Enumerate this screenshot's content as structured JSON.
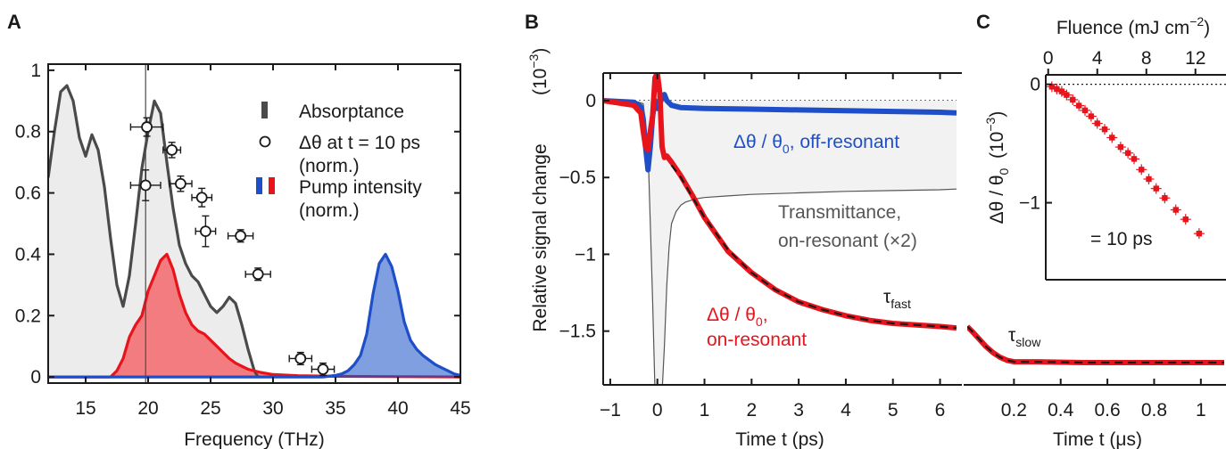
{
  "chart_data": [
    {
      "panel": "A",
      "type": "area",
      "xlabel": "Frequency (THz)",
      "ylabel": "",
      "xlim": [
        12,
        45
      ],
      "ylim": [
        -0.02,
        1.02
      ],
      "xticks": [
        15,
        20,
        25,
        30,
        35,
        40,
        45
      ],
      "yticks": [
        0,
        0.2,
        0.4,
        0.6,
        0.8,
        1
      ],
      "legend_position": "top-right",
      "legend": [
        {
          "label": "Absorptance",
          "label2": "",
          "marker": "bar",
          "color": "#4a4a4a"
        },
        {
          "label": "Δθ at t = 10 ps",
          "label2": "(norm.)",
          "marker": "circle",
          "color": "#1a1a1a"
        },
        {
          "label": "Pump intensity",
          "label2": "(norm.)",
          "marker": "bar-pair",
          "color": "#e8141c",
          "color2": "#1f4fc8"
        }
      ],
      "series": [
        {
          "key": "absorptance",
          "color": "#4a4a4a",
          "fill": "#ececec",
          "x": [
            12,
            12.5,
            13,
            13.5,
            14,
            14.5,
            15,
            15.5,
            16,
            16.5,
            17,
            17.5,
            18,
            18.5,
            19,
            19.5,
            20,
            20.5,
            21,
            21.5,
            22,
            22.5,
            23,
            23.5,
            24,
            24.5,
            25,
            25.5,
            26,
            26.5,
            27,
            27.5,
            28,
            28.5,
            28.8
          ],
          "y": [
            0.65,
            0.8,
            0.93,
            0.95,
            0.9,
            0.78,
            0.72,
            0.79,
            0.74,
            0.62,
            0.45,
            0.3,
            0.23,
            0.33,
            0.5,
            0.68,
            0.8,
            0.9,
            0.86,
            0.7,
            0.55,
            0.43,
            0.37,
            0.33,
            0.31,
            0.27,
            0.23,
            0.21,
            0.23,
            0.26,
            0.24,
            0.17,
            0.09,
            0.02,
            0.0
          ]
        },
        {
          "key": "pump_red",
          "color": "#e8141c",
          "fill": "#f37c80",
          "x": [
            12,
            17,
            17.5,
            18,
            18.5,
            19,
            19.5,
            20,
            20.5,
            21,
            21.5,
            22,
            22.5,
            23,
            23.5,
            24,
            24.5,
            25,
            25.5,
            26,
            26.5,
            27,
            27.5,
            28,
            29,
            30,
            32,
            35,
            45
          ],
          "y": [
            0,
            0,
            0.02,
            0.06,
            0.13,
            0.17,
            0.2,
            0.28,
            0.33,
            0.38,
            0.4,
            0.35,
            0.27,
            0.21,
            0.17,
            0.15,
            0.14,
            0.12,
            0.1,
            0.08,
            0.06,
            0.045,
            0.035,
            0.025,
            0.015,
            0.008,
            0.004,
            0.002,
            0
          ]
        },
        {
          "key": "pump_blue",
          "color": "#1f4fc8",
          "fill": "#7f9fe0",
          "x": [
            12,
            34,
            35,
            35.5,
            36,
            36.5,
            37,
            37.5,
            38,
            38.5,
            39,
            39.5,
            40,
            40.5,
            41,
            41.5,
            42,
            42.5,
            43,
            43.5,
            44,
            44.5,
            45
          ],
          "y": [
            0,
            0,
            0.005,
            0.01,
            0.02,
            0.04,
            0.07,
            0.14,
            0.27,
            0.37,
            0.4,
            0.36,
            0.28,
            0.18,
            0.12,
            0.09,
            0.07,
            0.055,
            0.04,
            0.03,
            0.02,
            0.01,
            0.005
          ]
        }
      ],
      "scatter": {
        "key": "delta_theta",
        "marker": "circle",
        "color": "#1a1a1a",
        "points": [
          {
            "x": 19.9,
            "y": 0.815,
            "xerr": 1.3,
            "yerr": 0.03
          },
          {
            "x": 21.9,
            "y": 0.74,
            "xerr": 0.7,
            "yerr": 0.025
          },
          {
            "x": 19.8,
            "y": 0.625,
            "xerr": 1.2,
            "yerr": 0.05
          },
          {
            "x": 22.6,
            "y": 0.63,
            "xerr": 0.9,
            "yerr": 0.025
          },
          {
            "x": 24.3,
            "y": 0.585,
            "xerr": 0.8,
            "yerr": 0.03
          },
          {
            "x": 24.6,
            "y": 0.475,
            "xerr": 0.8,
            "yerr": 0.05
          },
          {
            "x": 27.4,
            "y": 0.46,
            "xerr": 1.0,
            "yerr": 0.02
          },
          {
            "x": 28.8,
            "y": 0.335,
            "xerr": 1.0,
            "yerr": 0.02
          },
          {
            "x": 32.2,
            "y": 0.06,
            "xerr": 0.9,
            "yerr": 0.02
          },
          {
            "x": 34.0,
            "y": 0.025,
            "xerr": 0.9,
            "yerr": 0.02
          }
        ]
      },
      "vline_x": 19.8
    },
    {
      "panel": "B",
      "type": "line",
      "xlabel": "Time t (ps)",
      "ylabel": "Relative signal change",
      "ylabel_unit": "(10",
      "ylabel_unit_exp": "−3",
      "ylabel_unit_close": ")",
      "xlim": [
        -1.15,
        6.35
      ],
      "ylim": [
        -1.85,
        0.18
      ],
      "xticks": [
        -1,
        0,
        1,
        2,
        3,
        4,
        5,
        6
      ],
      "yticks": [
        0,
        -0.5,
        -1,
        -1.5
      ],
      "annotations": {
        "off_resonant": {
          "main": "Δθ / θ",
          "sub": "0",
          "rest": ", off-resonant",
          "color": "#1f4fc8"
        },
        "transmittance_1": {
          "text": "Transmittance,",
          "color": "#555555"
        },
        "transmittance_2": {
          "text": "on-resonant (×2)",
          "color": "#555555"
        },
        "tau_fast": {
          "main": "τ",
          "sub": "fast",
          "color": "#1a1a1a"
        },
        "on_resonant_1": {
          "main": "Δθ / θ",
          "sub": "0",
          "rest": ",",
          "color": "#e8141c"
        },
        "on_resonant_2": {
          "text": "on-resonant",
          "color": "#e8141c"
        }
      },
      "series": [
        {
          "key": "transmittance",
          "color": "#555555",
          "fill": "#f2f2f2",
          "x": [
            -1.15,
            -0.5,
            -0.3,
            -0.2,
            -0.1,
            -0.05,
            0.0,
            0.05,
            0.1,
            0.15,
            0.2,
            0.25,
            0.3,
            0.4,
            0.5,
            0.6,
            0.8,
            1.0,
            1.5,
            2,
            3,
            4,
            5,
            6,
            6.35
          ],
          "y": [
            0,
            0,
            -0.02,
            -0.3,
            -1.3,
            -1.9,
            -1.9,
            -1.9,
            -1.9,
            -1.6,
            -1.2,
            -0.95,
            -0.8,
            -0.72,
            -0.68,
            -0.66,
            -0.64,
            -0.63,
            -0.62,
            -0.61,
            -0.6,
            -0.59,
            -0.585,
            -0.58,
            -0.575
          ]
        },
        {
          "key": "off_resonant",
          "color": "#1f4fc8",
          "x": [
            -1.15,
            -0.5,
            -0.35,
            -0.3,
            -0.25,
            -0.2,
            -0.15,
            -0.1,
            -0.05,
            0.0,
            0.05,
            0.1,
            0.15,
            0.2,
            0.3,
            0.5,
            1,
            2,
            3,
            4,
            5,
            6,
            6.35
          ],
          "y": [
            0,
            -0.01,
            -0.04,
            -0.12,
            -0.3,
            -0.45,
            -0.3,
            -0.1,
            0.0,
            -0.05,
            -0.02,
            0.02,
            0.04,
            0.0,
            -0.03,
            -0.045,
            -0.05,
            -0.055,
            -0.06,
            -0.065,
            -0.07,
            -0.075,
            -0.08
          ]
        },
        {
          "key": "on_resonant",
          "color": "#e8141c",
          "x": [
            -1.15,
            -0.5,
            -0.35,
            -0.3,
            -0.25,
            -0.2,
            -0.15,
            -0.1,
            -0.05,
            0.0,
            0.05,
            0.1,
            0.15,
            0.2,
            0.3,
            0.5,
            0.75,
            1.0,
            1.5,
            2,
            2.5,
            3,
            3.5,
            4,
            4.5,
            5,
            5.5,
            6,
            6.35
          ],
          "y": [
            0,
            -0.03,
            -0.08,
            -0.2,
            -0.3,
            -0.32,
            -0.2,
            -0.1,
            0.15,
            0.18,
            0.05,
            -0.3,
            -0.37,
            -0.36,
            -0.4,
            -0.49,
            -0.62,
            -0.76,
            -0.98,
            -1.12,
            -1.23,
            -1.31,
            -1.36,
            -1.4,
            -1.43,
            -1.45,
            -1.46,
            -1.47,
            -1.48
          ]
        },
        {
          "key": "fit",
          "color": "#1a1a1a",
          "dash": true,
          "x": [
            0.3,
            0.5,
            0.75,
            1.0,
            1.5,
            2,
            2.5,
            3,
            3.5,
            4,
            4.5,
            5,
            5.5,
            6,
            6.35
          ],
          "y": [
            -0.42,
            -0.5,
            -0.63,
            -0.76,
            -0.97,
            -1.12,
            -1.23,
            -1.31,
            -1.36,
            -1.4,
            -1.43,
            -1.45,
            -1.46,
            -1.47,
            -1.48
          ]
        }
      ]
    },
    {
      "panel": "B-long",
      "type": "line",
      "xlabel": "Time t (μs)",
      "xlim": [
        0,
        1.1
      ],
      "ylim": [
        -1.85,
        0.18
      ],
      "xticks": [
        0.2,
        0.4,
        0.6,
        0.8,
        1
      ],
      "annotations": {
        "tau_slow": {
          "main": "τ",
          "sub": "slow",
          "color": "#1a1a1a"
        }
      },
      "series": [
        {
          "key": "on_resonant_long",
          "color": "#e8141c",
          "x": [
            0,
            0.02,
            0.05,
            0.08,
            0.11,
            0.14,
            0.17,
            0.2,
            0.3,
            0.5,
            0.7,
            0.9,
            1.1
          ],
          "y": [
            -1.47,
            -1.5,
            -1.55,
            -1.6,
            -1.64,
            -1.67,
            -1.69,
            -1.7,
            -1.7,
            -1.705,
            -1.705,
            -1.705,
            -1.705
          ]
        },
        {
          "key": "fit_long",
          "color": "#1a1a1a",
          "dash": true,
          "x": [
            0,
            0.02,
            0.05,
            0.08,
            0.11,
            0.14,
            0.17,
            0.2,
            0.3,
            0.5,
            0.7,
            0.9,
            1.1
          ],
          "y": [
            -1.47,
            -1.5,
            -1.55,
            -1.6,
            -1.64,
            -1.67,
            -1.69,
            -1.7,
            -1.7,
            -1.705,
            -1.705,
            -1.705,
            -1.705
          ]
        }
      ]
    },
    {
      "panel": "C",
      "type": "scatter",
      "xlabel": "Fluence (mJ cm",
      "xlabel_exp": "−2",
      "xlabel_close": ")",
      "ylabel": "Δθ / θ",
      "ylabel_sub": "0",
      "ylabel_unit": "(10",
      "ylabel_unit_exp": "−3",
      "ylabel_unit_close": ")",
      "xlim": [
        -0.2,
        14.2
      ],
      "ylim": [
        -1.65,
        0.08
      ],
      "xticks": [
        0,
        4,
        8,
        12
      ],
      "yticks": [
        0,
        -1
      ],
      "annotation": "= 10 ps",
      "color": "#e8141c",
      "x": [
        0.3,
        0.7,
        1.1,
        1.5,
        2.0,
        2.5,
        3.0,
        3.5,
        4.0,
        4.6,
        5.2,
        5.9,
        6.5,
        7.0,
        7.6,
        8.2,
        8.8,
        9.5,
        10.4,
        11.2,
        12.3
      ],
      "y": [
        -0.02,
        -0.04,
        -0.06,
        -0.09,
        -0.13,
        -0.18,
        -0.22,
        -0.27,
        -0.33,
        -0.38,
        -0.45,
        -0.53,
        -0.58,
        -0.63,
        -0.72,
        -0.8,
        -0.88,
        -0.96,
        -1.06,
        -1.14,
        -1.26
      ]
    }
  ]
}
